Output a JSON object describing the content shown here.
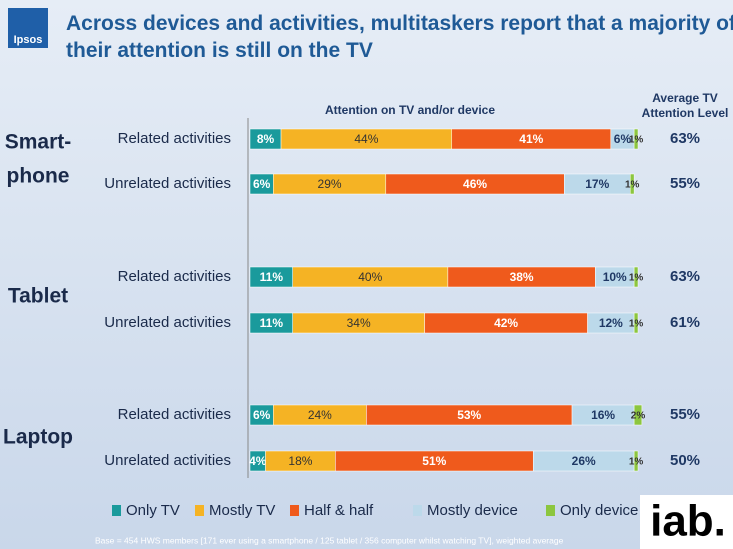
{
  "chart_data": {
    "type": "bar",
    "orientation": "horizontal",
    "stacked": true,
    "title": "Across devices and activities, multitaskers report that a majority of their attention is still on the TV",
    "axis_title": "Attention on TV and/or device",
    "groups": [
      [
        "Smart-",
        "phone"
      ],
      [
        "Tablet"
      ],
      [
        "Laptop"
      ]
    ],
    "categories": [
      "Related activities",
      "Unrelated activities",
      "Related activities",
      "Unrelated activities",
      "Related activities",
      "Unrelated activities"
    ],
    "xlim": [
      0,
      100
    ],
    "legend": "bottom",
    "series": [
      {
        "name": "Only TV",
        "color": "#1a9a9c",
        "values": [
          8,
          6,
          11,
          11,
          6,
          4
        ],
        "value_labels": [
          "8%",
          "6%",
          "11%",
          "11%",
          "6%",
          "4%"
        ]
      },
      {
        "name": "Mostly TV",
        "color": "#f5b324",
        "values": [
          44,
          29,
          40,
          34,
          24,
          18
        ],
        "value_labels": [
          "44%",
          "29%",
          "40%",
          "34%",
          "24%",
          "18%"
        ]
      },
      {
        "name": "Half & half",
        "color": "#ef5a1c",
        "values": [
          41,
          46,
          38,
          42,
          53,
          51
        ],
        "value_labels": [
          "41%",
          "46%",
          "38%",
          "42%",
          "53%",
          "51%"
        ]
      },
      {
        "name": "Mostly device",
        "color": "#bcd9ea",
        "values": [
          6,
          17,
          10,
          12,
          16,
          26
        ],
        "value_labels": [
          "6%",
          "17%",
          "10%",
          "12%",
          "16%",
          "26%"
        ]
      },
      {
        "name": "Only device",
        "color": "#8cc63f",
        "values": [
          1,
          1,
          1,
          1,
          2,
          1
        ],
        "value_labels": [
          "1%",
          "1%",
          "1%",
          "1%",
          "2%",
          "1%"
        ]
      }
    ],
    "average": {
      "title": [
        "Average TV",
        "Attention Level"
      ],
      "values": [
        63,
        55,
        63,
        61,
        55,
        50
      ],
      "value_labels": [
        "63%",
        "55%",
        "63%",
        "61%",
        "55%",
        "50%"
      ]
    },
    "footnote": "Base = 454 HWS members [171 ever using a smartphone  / 125 tablet / 356 computer whilst watching TV], weighted average"
  },
  "logos": {
    "ipsos": "Ipsos",
    "iab": "iab."
  }
}
